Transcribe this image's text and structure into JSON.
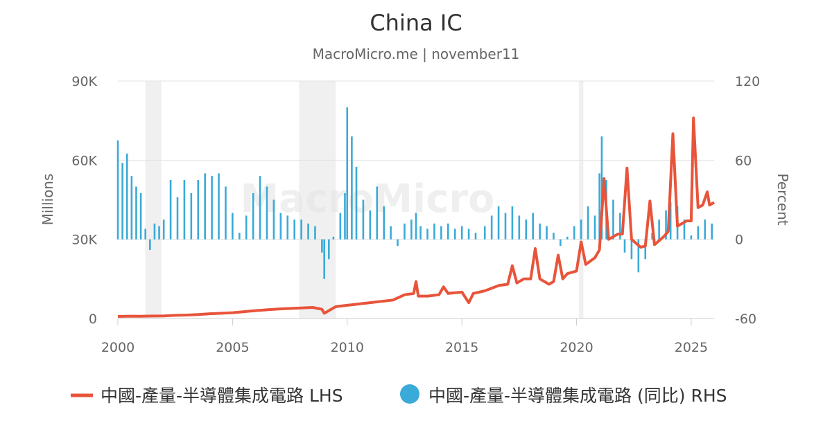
{
  "chart_data": {
    "type": "line",
    "title": "China IC",
    "subtitle": "MacroMicro.me | november11",
    "watermark": "MacroMicro",
    "ylabel_left": "Millions",
    "ylabel_right": "Percent",
    "xlabel": "",
    "x_range": [
      2000.0,
      2026.0
    ],
    "ylim_left": [
      0,
      90000
    ],
    "ylim_right": [
      -60,
      120
    ],
    "x_ticks": [
      2000,
      2005,
      2010,
      2015,
      2020,
      2025
    ],
    "y_ticks_left": [
      {
        "value": 0,
        "label": "0"
      },
      {
        "value": 30000,
        "label": "30K"
      },
      {
        "value": 60000,
        "label": "60K"
      },
      {
        "value": 90000,
        "label": "90K"
      }
    ],
    "y_ticks_right": [
      {
        "value": -60,
        "label": "-60"
      },
      {
        "value": 0,
        "label": "0"
      },
      {
        "value": 60,
        "label": "60"
      },
      {
        "value": 120,
        "label": "120"
      }
    ],
    "grid": true,
    "legend_position": "bottom",
    "recession_bands": [
      [
        2001.2,
        2001.9
      ],
      [
        2007.9,
        2009.5
      ],
      [
        2020.1,
        2020.3
      ]
    ],
    "series": [
      {
        "name": "中國-產量-半導體集成電路 LHS",
        "type": "line",
        "axis": "left",
        "color": "#e8543a",
        "points": [
          [
            2000.0,
            800
          ],
          [
            2000.5,
            900
          ],
          [
            2001.0,
            850
          ],
          [
            2001.5,
            950
          ],
          [
            2002.0,
            1000
          ],
          [
            2002.5,
            1200
          ],
          [
            2003.0,
            1300
          ],
          [
            2003.5,
            1500
          ],
          [
            2004.0,
            1800
          ],
          [
            2004.5,
            2000
          ],
          [
            2005.0,
            2200
          ],
          [
            2005.5,
            2600
          ],
          [
            2006.0,
            3000
          ],
          [
            2006.5,
            3300
          ],
          [
            2007.0,
            3600
          ],
          [
            2007.5,
            3800
          ],
          [
            2008.0,
            4000
          ],
          [
            2008.5,
            4200
          ],
          [
            2008.9,
            3500
          ],
          [
            2009.0,
            2000
          ],
          [
            2009.2,
            3000
          ],
          [
            2009.5,
            4500
          ],
          [
            2010.0,
            5000
          ],
          [
            2010.5,
            5500
          ],
          [
            2011.0,
            6000
          ],
          [
            2011.5,
            6500
          ],
          [
            2012.0,
            7000
          ],
          [
            2012.5,
            9000
          ],
          [
            2012.9,
            9500
          ],
          [
            2013.0,
            14000
          ],
          [
            2013.1,
            8500
          ],
          [
            2013.5,
            8500
          ],
          [
            2014.0,
            9000
          ],
          [
            2014.2,
            12000
          ],
          [
            2014.4,
            9500
          ],
          [
            2015.0,
            10000
          ],
          [
            2015.3,
            6000
          ],
          [
            2015.5,
            9500
          ],
          [
            2016.0,
            10500
          ],
          [
            2016.3,
            11500
          ],
          [
            2016.6,
            12500
          ],
          [
            2017.0,
            13000
          ],
          [
            2017.2,
            20000
          ],
          [
            2017.4,
            13500
          ],
          [
            2017.7,
            15000
          ],
          [
            2018.0,
            15000
          ],
          [
            2018.2,
            26500
          ],
          [
            2018.4,
            15000
          ],
          [
            2018.8,
            13000
          ],
          [
            2019.0,
            14000
          ],
          [
            2019.2,
            24000
          ],
          [
            2019.4,
            15000
          ],
          [
            2019.6,
            17000
          ],
          [
            2020.0,
            18000
          ],
          [
            2020.2,
            29000
          ],
          [
            2020.4,
            20500
          ],
          [
            2020.8,
            23000
          ],
          [
            2021.0,
            26000
          ],
          [
            2021.2,
            53000
          ],
          [
            2021.4,
            30000
          ],
          [
            2021.8,
            32000
          ],
          [
            2022.0,
            32000
          ],
          [
            2022.2,
            57000
          ],
          [
            2022.4,
            30000
          ],
          [
            2022.8,
            27000
          ],
          [
            2023.0,
            27500
          ],
          [
            2023.2,
            44500
          ],
          [
            2023.4,
            28000
          ],
          [
            2023.8,
            31000
          ],
          [
            2024.0,
            33000
          ],
          [
            2024.2,
            70000
          ],
          [
            2024.4,
            35000
          ],
          [
            2024.8,
            37000
          ],
          [
            2025.0,
            37000
          ],
          [
            2025.1,
            76000
          ],
          [
            2025.3,
            42000
          ],
          [
            2025.5,
            43000
          ],
          [
            2025.7,
            48000
          ],
          [
            2025.8,
            43000
          ],
          [
            2026.0,
            44000
          ]
        ]
      },
      {
        "name": "中國-產量-半導體集成電路 (同比) RHS",
        "type": "bar",
        "axis": "right",
        "color": "#3aaad8",
        "points": [
          [
            2000.0,
            75
          ],
          [
            2000.2,
            58
          ],
          [
            2000.4,
            65
          ],
          [
            2000.6,
            48
          ],
          [
            2000.8,
            40
          ],
          [
            2001.0,
            35
          ],
          [
            2001.2,
            8
          ],
          [
            2001.4,
            -8
          ],
          [
            2001.6,
            12
          ],
          [
            2001.8,
            10
          ],
          [
            2002.0,
            15
          ],
          [
            2002.3,
            45
          ],
          [
            2002.6,
            32
          ],
          [
            2002.9,
            45
          ],
          [
            2003.2,
            35
          ],
          [
            2003.5,
            45
          ],
          [
            2003.8,
            50
          ],
          [
            2004.1,
            48
          ],
          [
            2004.4,
            50
          ],
          [
            2004.7,
            40
          ],
          [
            2005.0,
            20
          ],
          [
            2005.3,
            5
          ],
          [
            2005.6,
            18
          ],
          [
            2005.9,
            35
          ],
          [
            2006.2,
            48
          ],
          [
            2006.5,
            40
          ],
          [
            2006.8,
            30
          ],
          [
            2007.1,
            20
          ],
          [
            2007.4,
            18
          ],
          [
            2007.7,
            15
          ],
          [
            2008.0,
            15
          ],
          [
            2008.3,
            12
          ],
          [
            2008.6,
            10
          ],
          [
            2008.9,
            -10
          ],
          [
            2009.0,
            -30
          ],
          [
            2009.2,
            -15
          ],
          [
            2009.4,
            2
          ],
          [
            2009.7,
            20
          ],
          [
            2009.9,
            35
          ],
          [
            2010.0,
            100
          ],
          [
            2010.2,
            78
          ],
          [
            2010.4,
            55
          ],
          [
            2010.7,
            30
          ],
          [
            2011.0,
            22
          ],
          [
            2011.3,
            40
          ],
          [
            2011.6,
            25
          ],
          [
            2011.9,
            10
          ],
          [
            2012.2,
            -5
          ],
          [
            2012.5,
            12
          ],
          [
            2012.8,
            15
          ],
          [
            2013.0,
            20
          ],
          [
            2013.2,
            10
          ],
          [
            2013.5,
            8
          ],
          [
            2013.8,
            12
          ],
          [
            2014.1,
            10
          ],
          [
            2014.4,
            12
          ],
          [
            2014.7,
            8
          ],
          [
            2015.0,
            10
          ],
          [
            2015.3,
            8
          ],
          [
            2015.6,
            5
          ],
          [
            2016.0,
            10
          ],
          [
            2016.3,
            18
          ],
          [
            2016.6,
            25
          ],
          [
            2016.9,
            20
          ],
          [
            2017.2,
            25
          ],
          [
            2017.5,
            18
          ],
          [
            2017.8,
            15
          ],
          [
            2018.1,
            20
          ],
          [
            2018.4,
            12
          ],
          [
            2018.7,
            10
          ],
          [
            2019.0,
            5
          ],
          [
            2019.3,
            -5
          ],
          [
            2019.6,
            2
          ],
          [
            2019.9,
            10
          ],
          [
            2020.2,
            15
          ],
          [
            2020.5,
            25
          ],
          [
            2020.8,
            18
          ],
          [
            2021.0,
            50
          ],
          [
            2021.1,
            78
          ],
          [
            2021.3,
            45
          ],
          [
            2021.6,
            30
          ],
          [
            2021.9,
            20
          ],
          [
            2022.1,
            -10
          ],
          [
            2022.4,
            -15
          ],
          [
            2022.7,
            -25
          ],
          [
            2023.0,
            -15
          ],
          [
            2023.3,
            5
          ],
          [
            2023.6,
            15
          ],
          [
            2023.9,
            22
          ],
          [
            2024.1,
            28
          ],
          [
            2024.4,
            25
          ],
          [
            2024.7,
            15
          ],
          [
            2025.0,
            3
          ],
          [
            2025.3,
            10
          ],
          [
            2025.6,
            15
          ],
          [
            2025.9,
            12
          ]
        ]
      }
    ]
  },
  "legend": {
    "items": [
      {
        "label": "中國-產量-半導體集成電路 LHS",
        "marker": "line",
        "color": "#e8543a"
      },
      {
        "label": "中國-產量-半導體集成電路 (同比) RHS",
        "marker": "circle",
        "color": "#3aaad8"
      }
    ]
  }
}
